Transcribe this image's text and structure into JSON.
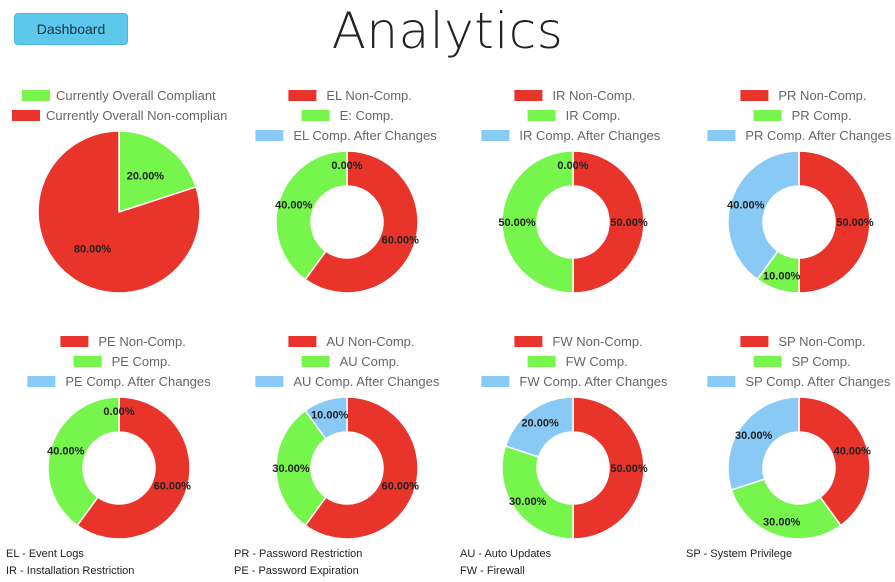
{
  "header": {
    "dashboard_button": "Dashboard",
    "title": "Analytics"
  },
  "chart_data": [
    {
      "type": "pie",
      "title": "",
      "categories": [
        "Currently Overall Compliant",
        "Currently Overall Non-complian"
      ],
      "values": [
        20,
        80
      ],
      "labels": [
        "20.00%",
        "80.00%"
      ],
      "colors": [
        "#76f54d",
        "#e8342b"
      ]
    },
    {
      "type": "pie",
      "title": "",
      "categories": [
        "EL Non-Comp.",
        "E: Comp.",
        "EL Comp. After Changes"
      ],
      "values": [
        60,
        40,
        0
      ],
      "labels": [
        "60.00%",
        "40.00%",
        "0.00%"
      ],
      "colors": [
        "#e8342b",
        "#76f54d",
        "#88c9f5"
      ]
    },
    {
      "type": "pie",
      "title": "",
      "categories": [
        "IR Non-Comp.",
        "IR Comp.",
        "IR Comp. After Changes"
      ],
      "values": [
        50,
        50,
        0
      ],
      "labels": [
        "50.00%",
        "50.00%",
        "0.00%"
      ],
      "colors": [
        "#e8342b",
        "#76f54d",
        "#88c9f5"
      ]
    },
    {
      "type": "pie",
      "title": "",
      "categories": [
        "PR Non-Comp.",
        "PR Comp.",
        "PR Comp. After Changes"
      ],
      "values": [
        50,
        10,
        40
      ],
      "labels": [
        "50.00%",
        "10.00%",
        "40.00%"
      ],
      "colors": [
        "#e8342b",
        "#76f54d",
        "#88c9f5"
      ]
    },
    {
      "type": "pie",
      "title": "",
      "categories": [
        "PE Non-Comp.",
        "PE Comp.",
        "PE Comp. After Changes"
      ],
      "values": [
        60,
        40,
        0
      ],
      "labels": [
        "60.00%",
        "40.00%",
        "0.00%"
      ],
      "colors": [
        "#e8342b",
        "#76f54d",
        "#88c9f5"
      ]
    },
    {
      "type": "pie",
      "title": "",
      "categories": [
        "AU Non-Comp.",
        "AU Comp.",
        "AU Comp. After Changes"
      ],
      "values": [
        60,
        30,
        10
      ],
      "labels": [
        "60.00%",
        "30.00%",
        "10.00%"
      ],
      "colors": [
        "#e8342b",
        "#76f54d",
        "#88c9f5"
      ]
    },
    {
      "type": "pie",
      "title": "",
      "categories": [
        "FW Non-Comp.",
        "FW Comp.",
        "FW Comp. After Changes"
      ],
      "values": [
        50,
        30,
        20
      ],
      "labels": [
        "50.00%",
        "30.00%",
        "20.00%"
      ],
      "colors": [
        "#e8342b",
        "#76f54d",
        "#88c9f5"
      ]
    },
    {
      "type": "pie",
      "title": "",
      "categories": [
        "SP Non-Comp.",
        "SP Comp.",
        "SP Comp. After Changes"
      ],
      "values": [
        40,
        30,
        30
      ],
      "labels": [
        "40.00%",
        "30.00%",
        "30.00%"
      ],
      "colors": [
        "#e8342b",
        "#76f54d",
        "#88c9f5"
      ]
    }
  ],
  "abbreviations": {
    "el": "EL - Event Logs",
    "ir": "IR - Installation Restriction",
    "pr": "PR - Password Restriction",
    "pe": "PE - Password Expiration",
    "au": "AU - Auto Updates",
    "fw": "FW - Firewall",
    "sp": "SP - System Privilege"
  }
}
